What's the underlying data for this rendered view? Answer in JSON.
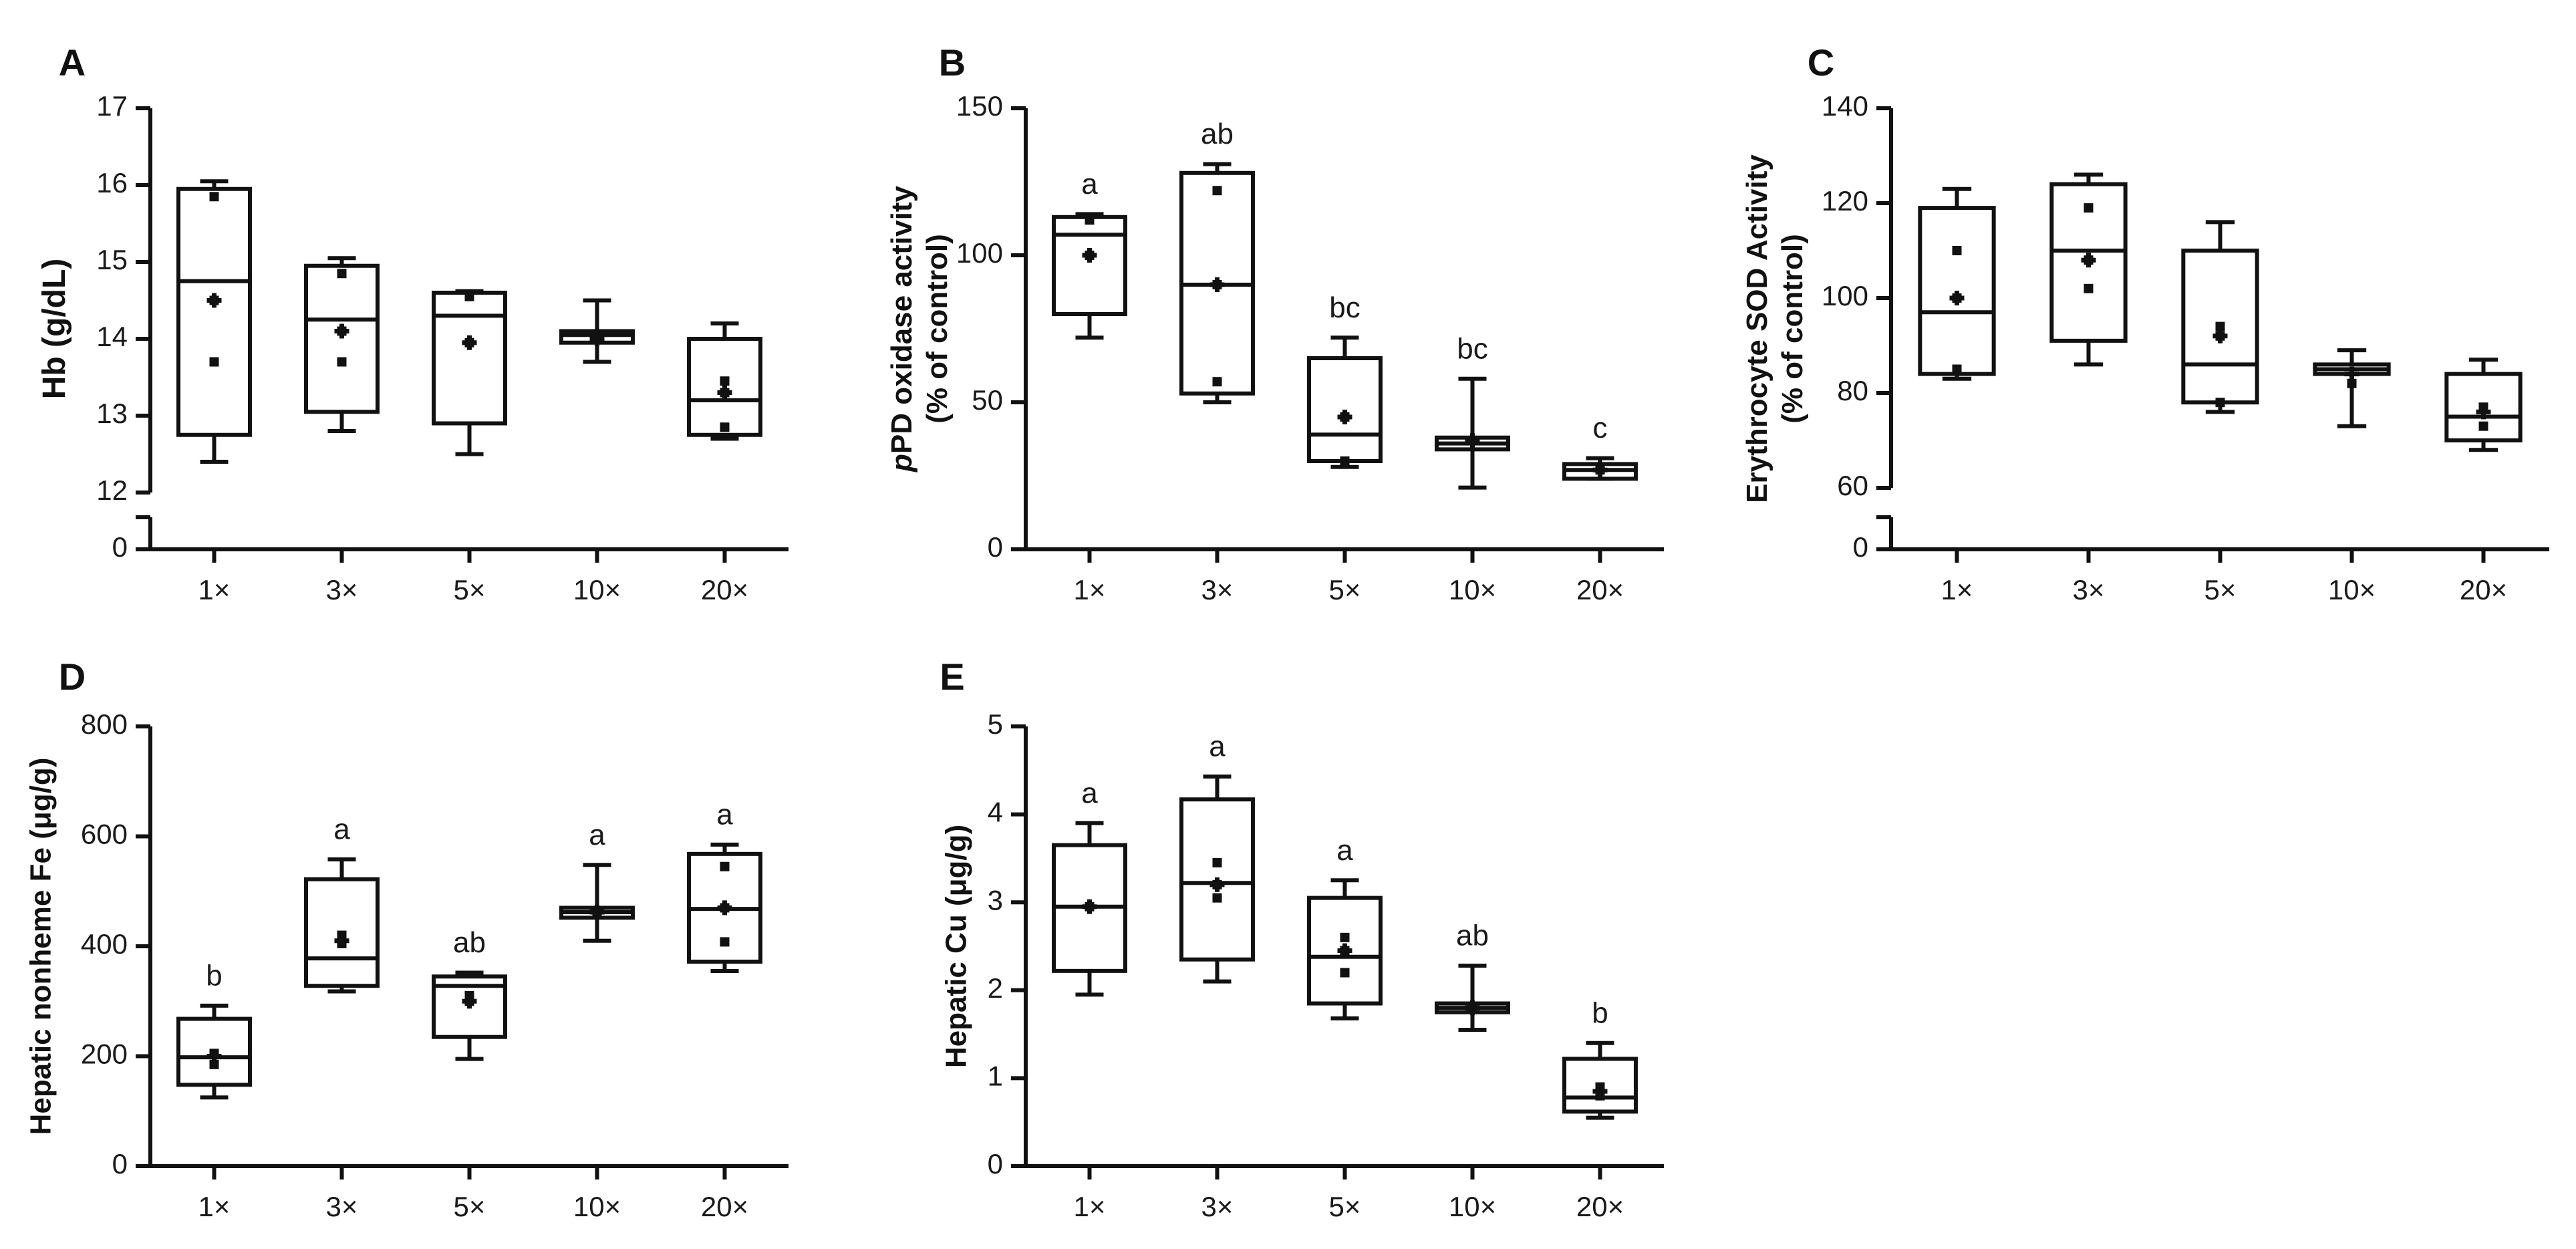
{
  "chart_data": [
    {
      "panel": "A",
      "type": "box",
      "ylabel": "Hb (g/dL)",
      "ylabel_lines": [
        "Hb (g/dL)"
      ],
      "ylim": [
        12,
        17
      ],
      "yticks": [
        "12",
        "13",
        "14",
        "15",
        "16",
        "17"
      ],
      "axis_break": true,
      "break_label": "0",
      "categories": [
        "1×",
        "3×",
        "5×",
        "10×",
        "20×"
      ],
      "boxes": [
        {
          "min": 12.4,
          "q1": 12.75,
          "median": 14.75,
          "q3": 15.95,
          "max": 16.05,
          "mean": 14.5,
          "points": [
            15.85,
            14.5,
            13.7
          ]
        },
        {
          "min": 12.8,
          "q1": 13.05,
          "median": 14.25,
          "q3": 14.95,
          "max": 15.05,
          "mean": 14.1,
          "points": [
            14.85,
            14.1,
            13.7
          ]
        },
        {
          "min": 12.5,
          "q1": 12.9,
          "median": 14.3,
          "q3": 14.6,
          "max": 14.62,
          "mean": 13.95,
          "points": [
            14.55,
            13.95
          ]
        },
        {
          "min": 13.7,
          "q1": 13.95,
          "median": 14.05,
          "q3": 14.1,
          "max": 14.5,
          "mean": 14.0,
          "points": [
            14.05
          ]
        },
        {
          "min": 12.7,
          "q1": 12.75,
          "median": 13.2,
          "q3": 14.0,
          "max": 14.2,
          "mean": 13.3,
          "points": [
            13.45,
            13.3,
            12.85
          ]
        }
      ],
      "letters": [
        "",
        "",
        "",
        "",
        ""
      ]
    },
    {
      "panel": "B",
      "type": "box",
      "ylabel": "pPD oxidase activity (% of control)",
      "ylabel_lines": [
        "pPD oxidase activity",
        "(% of control)"
      ],
      "ylim": [
        0,
        150
      ],
      "yticks": [
        "0",
        "50",
        "100",
        "150"
      ],
      "axis_break": false,
      "categories": [
        "1×",
        "3×",
        "5×",
        "10×",
        "20×"
      ],
      "boxes": [
        {
          "min": 72,
          "q1": 80,
          "median": 107,
          "q3": 113,
          "max": 114,
          "mean": 100,
          "points": [
            112,
            100
          ]
        },
        {
          "min": 50,
          "q1": 53,
          "median": 90,
          "q3": 128,
          "max": 131,
          "mean": 90,
          "points": [
            122,
            90,
            57
          ]
        },
        {
          "min": 28,
          "q1": 30,
          "median": 39,
          "q3": 65,
          "max": 72,
          "mean": 45,
          "points": [
            45,
            30
          ]
        },
        {
          "min": 21,
          "q1": 34,
          "median": 36,
          "q3": 38,
          "max": 58,
          "mean": 37,
          "points": [
            37
          ]
        },
        {
          "min": 24,
          "q1": 24,
          "median": 27,
          "q3": 29,
          "max": 31,
          "mean": 27,
          "points": [
            27
          ]
        }
      ],
      "letters": [
        "a",
        "ab",
        "bc",
        "bc",
        "c"
      ]
    },
    {
      "panel": "C",
      "type": "box",
      "ylabel": "Erythrocyte SOD Activity (% of control)",
      "ylabel_lines": [
        "Erythrocyte SOD Activity",
        "(% of control)"
      ],
      "ylim": [
        60,
        140
      ],
      "yticks": [
        "60",
        "80",
        "100",
        "120",
        "140"
      ],
      "axis_break": true,
      "break_label": "0",
      "categories": [
        "1×",
        "3×",
        "5×",
        "10×",
        "20×"
      ],
      "boxes": [
        {
          "min": 83,
          "q1": 84,
          "median": 97,
          "q3": 119,
          "max": 123,
          "mean": 100,
          "points": [
            110,
            100,
            85
          ]
        },
        {
          "min": 86,
          "q1": 91,
          "median": 110,
          "q3": 124,
          "max": 126,
          "mean": 108,
          "points": [
            119,
            108,
            102
          ]
        },
        {
          "min": 76,
          "q1": 78,
          "median": 86,
          "q3": 110,
          "max": 116,
          "mean": 92,
          "points": [
            94,
            92,
            78
          ]
        },
        {
          "min": 73,
          "q1": 84,
          "median": 85,
          "q3": 86,
          "max": 89,
          "mean": 84,
          "points": [
            82
          ]
        },
        {
          "min": 68,
          "q1": 70,
          "median": 75,
          "q3": 84,
          "max": 87,
          "mean": 76,
          "points": [
            77,
            73
          ]
        }
      ],
      "letters": [
        "",
        "",
        "",
        "",
        ""
      ]
    },
    {
      "panel": "D",
      "type": "box",
      "ylabel": "Hepatic nonheme Fe (μg/g)",
      "ylabel_lines": [
        "Hepatic nonheme Fe (μg/g)"
      ],
      "ylim": [
        0,
        800
      ],
      "yticks": [
        "0",
        "200",
        "400",
        "600",
        "800"
      ],
      "axis_break": false,
      "categories": [
        "1×",
        "3×",
        "5×",
        "10×",
        "20×"
      ],
      "boxes": [
        {
          "min": 125,
          "q1": 148,
          "median": 198,
          "q3": 268,
          "max": 292,
          "mean": 200,
          "points": [
            205,
            185
          ]
        },
        {
          "min": 318,
          "q1": 328,
          "median": 378,
          "q3": 522,
          "max": 558,
          "mean": 410,
          "points": [
            420,
            405
          ]
        },
        {
          "min": 195,
          "q1": 235,
          "median": 328,
          "q3": 345,
          "max": 352,
          "mean": 300,
          "points": [
            310,
            300
          ]
        },
        {
          "min": 410,
          "q1": 452,
          "median": 462,
          "q3": 470,
          "max": 548,
          "mean": 462,
          "points": [
            462
          ]
        },
        {
          "min": 355,
          "q1": 372,
          "median": 468,
          "q3": 568,
          "max": 585,
          "mean": 470,
          "points": [
            545,
            470,
            408
          ]
        }
      ],
      "letters": [
        "b",
        "a",
        "ab",
        "a",
        "a"
      ]
    },
    {
      "panel": "E",
      "type": "box",
      "ylabel": "Hepatic Cu (μg/g)",
      "ylabel_lines": [
        "Hepatic Cu (μg/g)"
      ],
      "ylim": [
        0,
        5
      ],
      "yticks": [
        "0",
        "1",
        "2",
        "3",
        "4",
        "5"
      ],
      "axis_break": false,
      "categories": [
        "1×",
        "3×",
        "5×",
        "10×",
        "20×"
      ],
      "boxes": [
        {
          "min": 1.95,
          "q1": 2.22,
          "median": 2.95,
          "q3": 3.65,
          "max": 3.9,
          "mean": 2.95,
          "points": [
            2.95
          ]
        },
        {
          "min": 2.1,
          "q1": 2.35,
          "median": 3.22,
          "q3": 4.17,
          "max": 4.43,
          "mean": 3.2,
          "points": [
            3.45,
            3.2,
            3.05
          ]
        },
        {
          "min": 1.68,
          "q1": 1.85,
          "median": 2.38,
          "q3": 3.05,
          "max": 3.25,
          "mean": 2.45,
          "points": [
            2.6,
            2.45,
            2.2
          ]
        },
        {
          "min": 1.55,
          "q1": 1.75,
          "median": 1.8,
          "q3": 1.85,
          "max": 2.28,
          "mean": 1.8,
          "points": [
            1.8
          ]
        },
        {
          "min": 0.55,
          "q1": 0.62,
          "median": 0.78,
          "q3": 1.22,
          "max": 1.4,
          "mean": 0.85,
          "points": [
            0.9,
            0.8
          ]
        }
      ],
      "letters": [
        "a",
        "a",
        "a",
        "ab",
        "b"
      ]
    }
  ]
}
